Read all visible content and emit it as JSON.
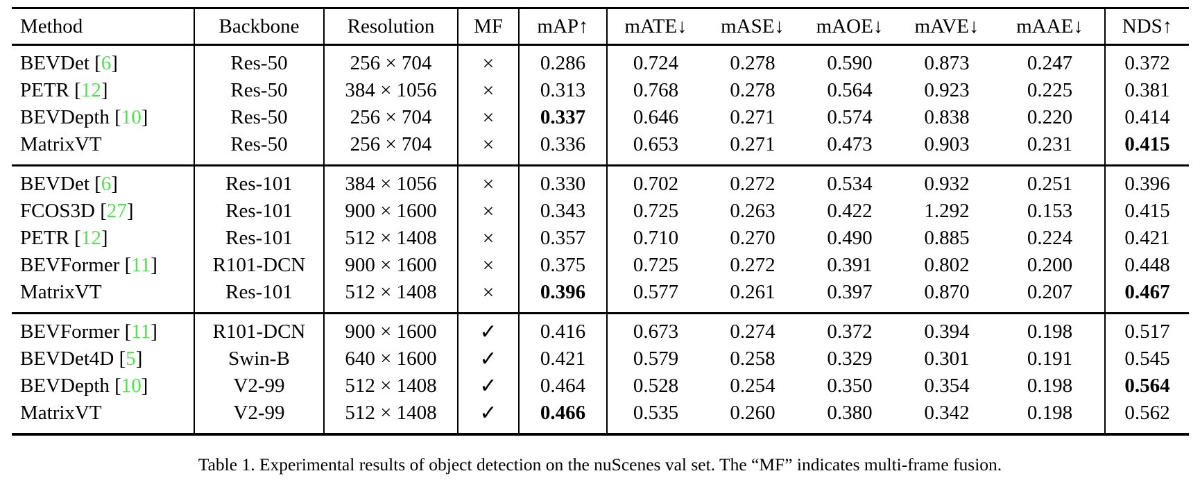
{
  "colors": {
    "citation_green": "#4ee44e",
    "text": "#000000",
    "background": "#ffffff"
  },
  "table": {
    "columns": [
      "Method",
      "Backbone",
      "Resolution",
      "MF",
      "mAP↑",
      "mATE↓",
      "mASE↓",
      "mAOE↓",
      "mAVE↓",
      "mAAE↓",
      "NDS↑"
    ],
    "value_names": [
      "map",
      "mate",
      "mase",
      "maoe",
      "mave",
      "maae",
      "nds"
    ],
    "mf_yes_symbol": "✓",
    "mf_no_symbol": "×",
    "groups": [
      {
        "rows": [
          {
            "method": "BEVDet",
            "cite": "6",
            "backbone": "Res-50",
            "resolution": "256 × 704",
            "mf": false,
            "values": [
              "0.286",
              "0.724",
              "0.278",
              "0.590",
              "0.873",
              "0.247",
              "0.372"
            ],
            "bold": []
          },
          {
            "method": "PETR",
            "cite": "12",
            "backbone": "Res-50",
            "resolution": "384 × 1056",
            "mf": false,
            "values": [
              "0.313",
              "0.768",
              "0.278",
              "0.564",
              "0.923",
              "0.225",
              "0.381"
            ],
            "bold": []
          },
          {
            "method": "BEVDepth",
            "cite": "10",
            "backbone": "Res-50",
            "resolution": "256 × 704",
            "mf": false,
            "values": [
              "0.337",
              "0.646",
              "0.271",
              "0.574",
              "0.838",
              "0.220",
              "0.414"
            ],
            "bold": [
              0
            ]
          },
          {
            "method": "MatrixVT",
            "cite": "",
            "backbone": "Res-50",
            "resolution": "256 × 704",
            "mf": false,
            "values": [
              "0.336",
              "0.653",
              "0.271",
              "0.473",
              "0.903",
              "0.231",
              "0.415"
            ],
            "bold": [
              6
            ]
          }
        ]
      },
      {
        "rows": [
          {
            "method": "BEVDet",
            "cite": "6",
            "backbone": "Res-101",
            "resolution": "384 × 1056",
            "mf": false,
            "values": [
              "0.330",
              "0.702",
              "0.272",
              "0.534",
              "0.932",
              "0.251",
              "0.396"
            ],
            "bold": []
          },
          {
            "method": "FCOS3D",
            "cite": "27",
            "backbone": "Res-101",
            "resolution": "900 × 1600",
            "mf": false,
            "values": [
              "0.343",
              "0.725",
              "0.263",
              "0.422",
              "1.292",
              "0.153",
              "0.415"
            ],
            "bold": []
          },
          {
            "method": "PETR",
            "cite": "12",
            "backbone": "Res-101",
            "resolution": "512 × 1408",
            "mf": false,
            "values": [
              "0.357",
              "0.710",
              "0.270",
              "0.490",
              "0.885",
              "0.224",
              "0.421"
            ],
            "bold": []
          },
          {
            "method": "BEVFormer",
            "cite": "11",
            "backbone": "R101-DCN",
            "resolution": "900 × 1600",
            "mf": false,
            "values": [
              "0.375",
              "0.725",
              "0.272",
              "0.391",
              "0.802",
              "0.200",
              "0.448"
            ],
            "bold": []
          },
          {
            "method": "MatrixVT",
            "cite": "",
            "backbone": "Res-101",
            "resolution": "512 × 1408",
            "mf": false,
            "values": [
              "0.396",
              "0.577",
              "0.261",
              "0.397",
              "0.870",
              "0.207",
              "0.467"
            ],
            "bold": [
              0,
              6
            ]
          }
        ]
      },
      {
        "rows": [
          {
            "method": "BEVFormer",
            "cite": "11",
            "backbone": "R101-DCN",
            "resolution": "900 × 1600",
            "mf": true,
            "values": [
              "0.416",
              "0.673",
              "0.274",
              "0.372",
              "0.394",
              "0.198",
              "0.517"
            ],
            "bold": []
          },
          {
            "method": "BEVDet4D",
            "cite": "5",
            "backbone": "Swin-B",
            "resolution": "640 × 1600",
            "mf": true,
            "values": [
              "0.421",
              "0.579",
              "0.258",
              "0.329",
              "0.301",
              "0.191",
              "0.545"
            ],
            "bold": []
          },
          {
            "method": "BEVDepth",
            "cite": "10",
            "backbone": "V2-99",
            "resolution": "512 × 1408",
            "mf": true,
            "values": [
              "0.464",
              "0.528",
              "0.254",
              "0.350",
              "0.354",
              "0.198",
              "0.564"
            ],
            "bold": [
              6
            ]
          },
          {
            "method": "MatrixVT",
            "cite": "",
            "backbone": "V2-99",
            "resolution": "512 × 1408",
            "mf": true,
            "values": [
              "0.466",
              "0.535",
              "0.260",
              "0.380",
              "0.342",
              "0.198",
              "0.562"
            ],
            "bold": [
              0
            ]
          }
        ]
      }
    ]
  },
  "caption": "Table 1. Experimental results of object detection on the nuScenes val set. The “MF” indicates multi-frame fusion."
}
